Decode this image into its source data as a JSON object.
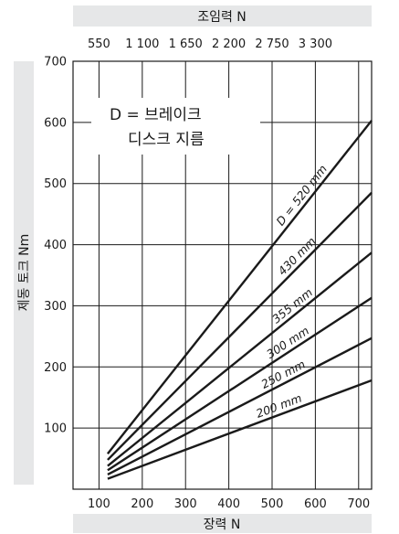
{
  "chart_data": {
    "type": "line",
    "title": "",
    "xlabel": "장력 N",
    "ylabel": "제동 토크 Nm",
    "x2label": "조임력 N",
    "xlim": [
      40,
      730
    ],
    "ylim": [
      0,
      700
    ],
    "xticks": [
      100,
      200,
      300,
      400,
      500,
      600,
      700
    ],
    "yticks": [
      100,
      200,
      300,
      400,
      500,
      600,
      700
    ],
    "x2ticks": [
      "550",
      "1 100",
      "1 650",
      "2 200",
      "2 750",
      "3 300"
    ],
    "grid": true,
    "legend_lines": [
      "D = 브레이크",
      "디스크 지름"
    ],
    "series": [
      {
        "name": "D = 520 mm",
        "x": [
          120,
          730
        ],
        "y": [
          58,
          603
        ]
      },
      {
        "name": "430 mm",
        "x": [
          120,
          730
        ],
        "y": [
          48,
          485
        ]
      },
      {
        "name": "355 mm",
        "x": [
          120,
          730
        ],
        "y": [
          38,
          387
        ]
      },
      {
        "name": "300 mm",
        "x": [
          120,
          730
        ],
        "y": [
          31,
          313
        ]
      },
      {
        "name": "250 mm",
        "x": [
          120,
          730
        ],
        "y": [
          24,
          247
        ]
      },
      {
        "name": "200 mm",
        "x": [
          120,
          730
        ],
        "y": [
          17,
          178
        ]
      }
    ]
  }
}
